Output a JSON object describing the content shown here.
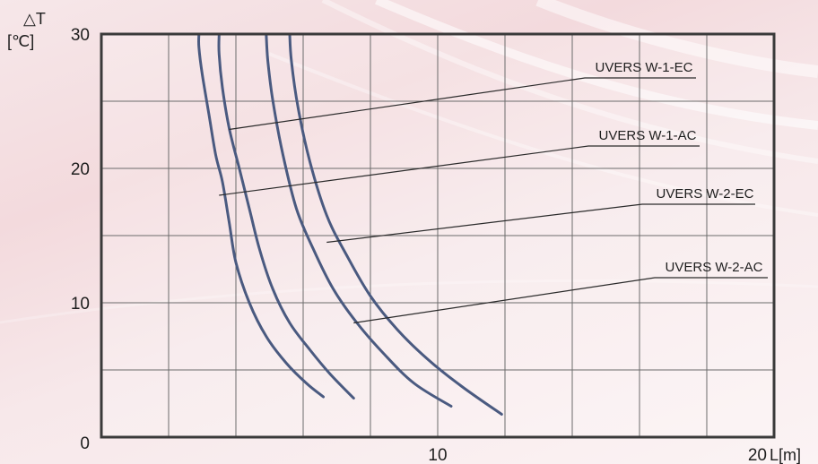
{
  "chart_data": {
    "type": "line",
    "x_unit_label": "L[m]",
    "y_label_top": "△T",
    "y_label_unit": "[℃]",
    "xlim": [
      0,
      20
    ],
    "ylim": [
      0,
      30
    ],
    "x_ticks": [
      {
        "value": 10,
        "label": "10"
      },
      {
        "value": 20,
        "label": "20"
      }
    ],
    "y_ticks": [
      {
        "value": 0,
        "label": "0"
      },
      {
        "value": 10,
        "label": "10"
      },
      {
        "value": 20,
        "label": "20"
      },
      {
        "value": 30,
        "label": "30"
      }
    ],
    "grid": true,
    "grid_x_step": 2,
    "grid_y_step": 5,
    "line_color": "#4a5a80",
    "frame_color": "#3a3a3a",
    "series": [
      {
        "name": "UVERS W-1-EC",
        "x": [
          2.9,
          2.9,
          3.0,
          3.2,
          3.4,
          3.6,
          3.8,
          4.0,
          4.4,
          4.9,
          5.5,
          6.1,
          6.6
        ],
        "y": [
          30,
          29,
          27,
          24,
          21,
          19,
          16,
          13,
          10,
          7.5,
          5.5,
          4,
          3
        ],
        "label_point": [
          3.8,
          22.9
        ]
      },
      {
        "name": "UVERS W-1-AC",
        "x": [
          3.5,
          3.5,
          3.6,
          3.8,
          4.1,
          4.4,
          4.7,
          5.1,
          5.6,
          6.2,
          6.8,
          7.5
        ],
        "y": [
          30,
          28.5,
          26,
          23,
          20,
          17,
          14,
          11,
          8.5,
          6.5,
          4.7,
          2.9
        ],
        "label_point": [
          3.5,
          18
        ]
      },
      {
        "name": "UVERS W-2-EC",
        "x": [
          4.9,
          4.95,
          5.1,
          5.4,
          5.8,
          6.3,
          6.9,
          7.6,
          8.4,
          9.3,
          10.4
        ],
        "y": [
          30,
          28,
          25,
          21,
          17,
          14,
          11,
          8.5,
          6.2,
          4,
          2.3
        ],
        "label_point": [
          6.7,
          14.5
        ]
      },
      {
        "name": "UVERS W-2-AC",
        "x": [
          5.6,
          5.65,
          5.85,
          6.2,
          6.7,
          7.3,
          8.0,
          8.8,
          9.7,
          10.7,
          11.9
        ],
        "y": [
          30,
          28,
          24.5,
          20.5,
          16.5,
          13.5,
          10.5,
          8,
          5.8,
          3.8,
          1.7
        ],
        "label_point": [
          7.5,
          8.5
        ]
      }
    ]
  }
}
